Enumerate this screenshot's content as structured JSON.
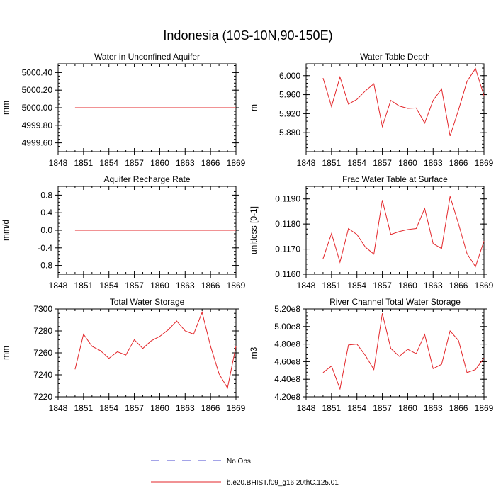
{
  "figure": {
    "title": "Indonesia (10S-10N,90-150E)"
  },
  "legend": {
    "entries": [
      {
        "label": "No Obs",
        "color": "#4a4ad0",
        "style": "dashed"
      },
      {
        "label": "b.e20.BHIST.f09_g16.20thC.125.01",
        "color": "#e3262a",
        "style": "solid"
      }
    ]
  },
  "chart_data": [
    {
      "type": "line",
      "title": "Water in Unconfined Aquifer",
      "ylabel": "mm",
      "xlim": [
        1848,
        1869
      ],
      "ylim": [
        4999.5,
        5000.5
      ],
      "xticks": [
        1848,
        1851,
        1854,
        1857,
        1860,
        1863,
        1866,
        1869
      ],
      "xtick_labels": [
        "1848",
        "1851",
        "1854",
        "1857",
        "1860",
        "1863",
        "1866",
        "1869"
      ],
      "yticks": [
        4999.6,
        4999.8,
        5000.0,
        5000.2,
        5000.4
      ],
      "ytick_labels": [
        "4999.60",
        "4999.80",
        "5000.00",
        "5000.20",
        "5000.40"
      ],
      "x": [
        1850,
        1851,
        1852,
        1853,
        1854,
        1855,
        1856,
        1857,
        1858,
        1859,
        1860,
        1861,
        1862,
        1863,
        1864,
        1865,
        1866,
        1867,
        1868,
        1869
      ],
      "series": [
        {
          "color": "#e3262a",
          "values": [
            5000,
            5000,
            5000,
            5000,
            5000,
            5000,
            5000,
            5000,
            5000,
            5000,
            5000,
            5000,
            5000,
            5000,
            5000,
            5000,
            5000,
            5000,
            5000,
            5000
          ]
        }
      ]
    },
    {
      "type": "line",
      "title": "Water Table Depth",
      "ylabel": "m",
      "xlim": [
        1848,
        1869
      ],
      "ylim": [
        5.84,
        6.025
      ],
      "xticks": [
        1848,
        1851,
        1854,
        1857,
        1860,
        1863,
        1866,
        1869
      ],
      "xtick_labels": [
        "1848",
        "1851",
        "1854",
        "1857",
        "1860",
        "1863",
        "1866",
        "1869"
      ],
      "yticks": [
        5.88,
        5.92,
        5.96,
        6.0
      ],
      "ytick_labels": [
        "5.880",
        "5.920",
        "5.960",
        "6.000"
      ],
      "x": [
        1850,
        1851,
        1852,
        1853,
        1854,
        1855,
        1856,
        1857,
        1858,
        1859,
        1860,
        1861,
        1862,
        1863,
        1864,
        1865,
        1866,
        1867,
        1868,
        1869
      ],
      "series": [
        {
          "color": "#e3262a",
          "values": [
            5.995,
            5.935,
            5.997,
            5.94,
            5.95,
            5.968,
            5.983,
            5.893,
            5.948,
            5.936,
            5.931,
            5.932,
            5.9,
            5.948,
            5.972,
            5.873,
            5.928,
            5.988,
            6.015,
            5.958
          ]
        }
      ]
    },
    {
      "type": "line",
      "title": "Aquifer Recharge Rate",
      "ylabel": "mm/d",
      "xlim": [
        1848,
        1869
      ],
      "ylim": [
        -1.0,
        1.0
      ],
      "xticks": [
        1848,
        1851,
        1854,
        1857,
        1860,
        1863,
        1866,
        1869
      ],
      "xtick_labels": [
        "1848",
        "1851",
        "1854",
        "1857",
        "1860",
        "1863",
        "1866",
        "1869"
      ],
      "yticks": [
        -0.8,
        -0.4,
        0.0,
        0.4,
        0.8
      ],
      "ytick_labels": [
        "-0.8",
        "-0.4",
        "0.0",
        "0.4",
        "0.8"
      ],
      "x": [
        1850,
        1851,
        1852,
        1853,
        1854,
        1855,
        1856,
        1857,
        1858,
        1859,
        1860,
        1861,
        1862,
        1863,
        1864,
        1865,
        1866,
        1867,
        1868,
        1869
      ],
      "series": [
        {
          "color": "#e3262a",
          "values": [
            0,
            0,
            0,
            0,
            0,
            0,
            0,
            0,
            0,
            0,
            0,
            0,
            0,
            0,
            0,
            0,
            0,
            0,
            0,
            0
          ]
        }
      ]
    },
    {
      "type": "line",
      "title": "Frac Water Table at Surface",
      "ylabel": "unitless [0-1]",
      "xlim": [
        1848,
        1869
      ],
      "ylim": [
        0.116,
        0.1195
      ],
      "xticks": [
        1848,
        1851,
        1854,
        1857,
        1860,
        1863,
        1866,
        1869
      ],
      "xtick_labels": [
        "1848",
        "1851",
        "1854",
        "1857",
        "1860",
        "1863",
        "1866",
        "1869"
      ],
      "yticks": [
        0.116,
        0.117,
        0.118,
        0.119
      ],
      "ytick_labels": [
        "0.1160",
        "0.1170",
        "0.1180",
        "0.1190"
      ],
      "x": [
        1850,
        1851,
        1852,
        1853,
        1854,
        1855,
        1856,
        1857,
        1858,
        1859,
        1860,
        1861,
        1862,
        1863,
        1864,
        1865,
        1866,
        1867,
        1868,
        1869
      ],
      "series": [
        {
          "color": "#e3262a",
          "values": [
            0.11662,
            0.11762,
            0.11648,
            0.11782,
            0.11758,
            0.11708,
            0.1168,
            0.11895,
            0.11758,
            0.1177,
            0.11778,
            0.11782,
            0.11862,
            0.11722,
            0.11702,
            0.1191,
            0.118,
            0.11682,
            0.1163,
            0.11732
          ]
        }
      ]
    },
    {
      "type": "line",
      "title": "Total Water Storage",
      "ylabel": "mm",
      "xlim": [
        1848,
        1869
      ],
      "ylim": [
        7220,
        7300
      ],
      "xticks": [
        1848,
        1851,
        1854,
        1857,
        1860,
        1863,
        1866,
        1869
      ],
      "xtick_labels": [
        "1848",
        "1851",
        "1854",
        "1857",
        "1860",
        "1863",
        "1866",
        "1869"
      ],
      "yticks": [
        7220,
        7240,
        7260,
        7280,
        7300
      ],
      "ytick_labels": [
        "7220",
        "7240",
        "7260",
        "7280",
        "7300"
      ],
      "x": [
        1850,
        1851,
        1852,
        1853,
        1854,
        1855,
        1856,
        1857,
        1858,
        1859,
        1860,
        1861,
        1862,
        1863,
        1864,
        1865,
        1866,
        1867,
        1868,
        1869
      ],
      "series": [
        {
          "color": "#e3262a",
          "values": [
            7245,
            7277,
            7266,
            7262,
            7255,
            7261,
            7258,
            7272,
            7264,
            7271,
            7275,
            7281,
            7289,
            7280,
            7277,
            7297,
            7266,
            7241,
            7228,
            7266
          ]
        }
      ]
    },
    {
      "type": "line",
      "title": "River Channel Total Water Storage",
      "ylabel": "m3",
      "xlim": [
        1848,
        1869
      ],
      "ylim": [
        420000000,
        520000000
      ],
      "xticks": [
        1848,
        1851,
        1854,
        1857,
        1860,
        1863,
        1866,
        1869
      ],
      "xtick_labels": [
        "1848",
        "1851",
        "1854",
        "1857",
        "1860",
        "1863",
        "1866",
        "1869"
      ],
      "yticks": [
        420000000,
        440000000,
        460000000,
        480000000,
        500000000,
        520000000
      ],
      "ytick_labels": [
        "4.20e8",
        "4.40e8",
        "4.60e8",
        "4.80e8",
        "5.00e8",
        "5.20e8"
      ],
      "x": [
        1850,
        1851,
        1852,
        1853,
        1854,
        1855,
        1856,
        1857,
        1858,
        1859,
        1860,
        1861,
        1862,
        1863,
        1864,
        1865,
        1866,
        1867,
        1868,
        1869
      ],
      "series": [
        {
          "color": "#e3262a",
          "values": [
            447500000,
            455000000,
            429000000,
            479000000,
            480000000,
            467000000,
            451000000,
            515000000,
            475000000,
            466000000,
            474000000,
            469000000,
            491000000,
            452000000,
            457000000,
            495000000,
            484000000,
            447500000,
            451000000,
            464000000
          ]
        }
      ]
    }
  ]
}
